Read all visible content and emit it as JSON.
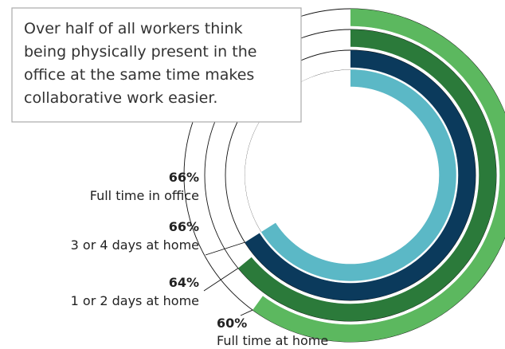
{
  "chart_data": {
    "type": "radial-bar",
    "annotation": [
      "Over half of all workers think",
      "being physically present in the",
      "office at the same time makes",
      "collaborative work easier."
    ],
    "series": [
      {
        "name": "Full time in office",
        "color": "#5bb8c6",
        "values": [
          66
        ],
        "value_labels": [
          "66%"
        ]
      },
      {
        "name": "3 or 4 days at home",
        "color": "#0b3a5c",
        "values": [
          66
        ],
        "value_labels": [
          "66%"
        ]
      },
      {
        "name": "1 or 2 days at home",
        "color": "#2b7a3a",
        "values": [
          64
        ],
        "value_labels": [
          "64%"
        ]
      },
      {
        "name": "Full time at home",
        "color": "#5cb85f",
        "values": [
          60
        ],
        "value_labels": [
          "60%"
        ]
      }
    ],
    "ylim": [
      0,
      100
    ]
  }
}
